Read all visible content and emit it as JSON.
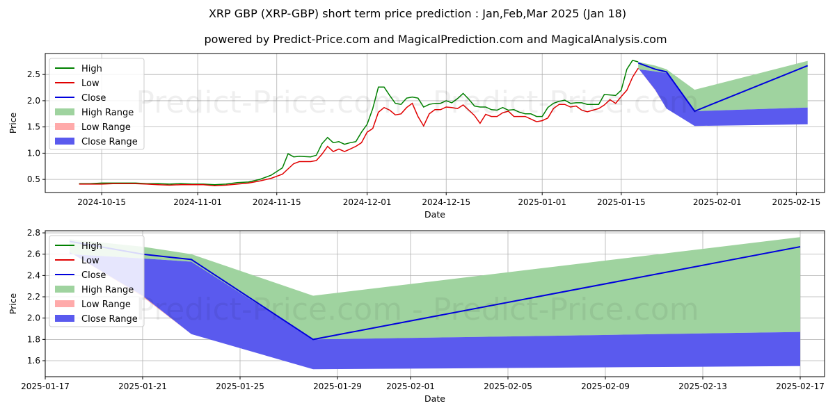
{
  "title": "XRP GBP (XRP-GBP) short term price prediction : Jan,Feb,Mar 2025 (Jan 18)",
  "subtitle": "powered by Predict-Price.com and MagicalPrediction.com and MagicalAnalysis.com",
  "watermark": "Predict-Price.com - Predict-Price.com",
  "colors": {
    "high": "#008000",
    "low": "#e00000",
    "close": "#0000dd",
    "high_range": "#9fd39f",
    "low_range": "#ffaaaa",
    "close_range": "#5a5aee"
  },
  "chart_data": [
    {
      "type": "line",
      "xlabel": "Date",
      "ylabel": "Price",
      "xlim": [
        "2024-10-05",
        "2025-02-20"
      ],
      "ylim": [
        0.25,
        2.9
      ],
      "xticks": [
        "2024-10-15",
        "2024-11-01",
        "2024-11-15",
        "2024-12-01",
        "2024-12-15",
        "2025-01-01",
        "2025-01-15",
        "2025-02-01",
        "2025-02-15"
      ],
      "yticks": [
        0.5,
        1.0,
        1.5,
        2.0,
        2.5
      ],
      "ytick_labels": [
        "0.5",
        "1.0",
        "1.5",
        "2.0",
        "2.5"
      ],
      "legend": [
        "High",
        "Low",
        "Close",
        "High Range",
        "Low Range",
        "Close Range"
      ],
      "legend_position": "upper-left",
      "grid": true,
      "history": [
        [
          "2024-10-11",
          0.42,
          0.41
        ],
        [
          "2024-10-13",
          0.42,
          0.41
        ],
        [
          "2024-10-15",
          0.43,
          0.41
        ],
        [
          "2024-10-17",
          0.43,
          0.42
        ],
        [
          "2024-10-19",
          0.43,
          0.42
        ],
        [
          "2024-10-21",
          0.43,
          0.42
        ],
        [
          "2024-10-23",
          0.42,
          0.41
        ],
        [
          "2024-10-25",
          0.42,
          0.4
        ],
        [
          "2024-10-27",
          0.41,
          0.39
        ],
        [
          "2024-10-29",
          0.42,
          0.4
        ],
        [
          "2024-10-31",
          0.41,
          0.4
        ],
        [
          "2024-11-02",
          0.41,
          0.4
        ],
        [
          "2024-11-04",
          0.4,
          0.38
        ],
        [
          "2024-11-06",
          0.41,
          0.39
        ],
        [
          "2024-11-08",
          0.44,
          0.41
        ],
        [
          "2024-11-10",
          0.45,
          0.43
        ],
        [
          "2024-11-12",
          0.5,
          0.47
        ],
        [
          "2024-11-14",
          0.58,
          0.52
        ],
        [
          "2024-11-16",
          0.72,
          0.6
        ],
        [
          "2024-11-17",
          0.99,
          0.7
        ],
        [
          "2024-11-18",
          0.93,
          0.8
        ],
        [
          "2024-11-19",
          0.94,
          0.84
        ],
        [
          "2024-11-21",
          0.93,
          0.84
        ],
        [
          "2024-11-22",
          0.96,
          0.86
        ],
        [
          "2024-11-23",
          1.18,
          0.98
        ],
        [
          "2024-11-24",
          1.3,
          1.13
        ],
        [
          "2024-11-25",
          1.2,
          1.03
        ],
        [
          "2024-11-26",
          1.22,
          1.08
        ],
        [
          "2024-11-27",
          1.17,
          1.03
        ],
        [
          "2024-11-28",
          1.2,
          1.08
        ],
        [
          "2024-11-29",
          1.22,
          1.13
        ],
        [
          "2024-11-30",
          1.4,
          1.2
        ],
        [
          "2024-12-01",
          1.55,
          1.4
        ],
        [
          "2024-12-02",
          1.85,
          1.47
        ],
        [
          "2024-12-03",
          2.26,
          1.78
        ],
        [
          "2024-12-04",
          2.26,
          1.87
        ],
        [
          "2024-12-05",
          2.1,
          1.82
        ],
        [
          "2024-12-06",
          1.95,
          1.73
        ],
        [
          "2024-12-07",
          1.93,
          1.75
        ],
        [
          "2024-12-08",
          2.05,
          1.87
        ],
        [
          "2024-12-09",
          2.07,
          1.95
        ],
        [
          "2024-12-10",
          2.05,
          1.7
        ],
        [
          "2024-12-11",
          1.88,
          1.52
        ],
        [
          "2024-12-12",
          1.93,
          1.75
        ],
        [
          "2024-12-13",
          1.95,
          1.83
        ],
        [
          "2024-12-14",
          1.95,
          1.83
        ],
        [
          "2024-12-15",
          2.0,
          1.88
        ],
        [
          "2024-12-16",
          1.96,
          1.87
        ],
        [
          "2024-12-17",
          2.04,
          1.85
        ],
        [
          "2024-12-18",
          2.14,
          1.92
        ],
        [
          "2024-12-19",
          2.03,
          1.82
        ],
        [
          "2024-12-20",
          1.9,
          1.72
        ],
        [
          "2024-12-21",
          1.88,
          1.57
        ],
        [
          "2024-12-22",
          1.88,
          1.74
        ],
        [
          "2024-12-23",
          1.83,
          1.7
        ],
        [
          "2024-12-24",
          1.82,
          1.7
        ],
        [
          "2024-12-25",
          1.87,
          1.77
        ],
        [
          "2024-12-26",
          1.82,
          1.8
        ],
        [
          "2024-12-27",
          1.83,
          1.7
        ],
        [
          "2024-12-28",
          1.78,
          1.7
        ],
        [
          "2024-12-29",
          1.75,
          1.7
        ],
        [
          "2024-12-30",
          1.75,
          1.65
        ],
        [
          "2024-12-31",
          1.7,
          1.6
        ],
        [
          "2025-01-01",
          1.7,
          1.62
        ],
        [
          "2025-01-02",
          1.87,
          1.67
        ],
        [
          "2025-01-03",
          1.95,
          1.85
        ],
        [
          "2025-01-04",
          1.99,
          1.93
        ],
        [
          "2025-01-05",
          2.01,
          1.93
        ],
        [
          "2025-01-06",
          1.95,
          1.88
        ],
        [
          "2025-01-07",
          1.96,
          1.9
        ],
        [
          "2025-01-08",
          1.96,
          1.82
        ],
        [
          "2025-01-09",
          1.93,
          1.79
        ],
        [
          "2025-01-10",
          1.93,
          1.82
        ],
        [
          "2025-01-11",
          1.93,
          1.85
        ],
        [
          "2025-01-12",
          2.12,
          1.92
        ],
        [
          "2025-01-13",
          2.11,
          2.02
        ],
        [
          "2025-01-14",
          2.1,
          1.95
        ],
        [
          "2025-01-15",
          2.2,
          2.08
        ],
        [
          "2025-01-16",
          2.6,
          2.2
        ],
        [
          "2025-01-17",
          2.77,
          2.45
        ],
        [
          "2025-01-18",
          2.74,
          2.62
        ]
      ],
      "forecast": [
        [
          "2025-01-18",
          2.74,
          2.62,
          2.72,
          2.6,
          2.62,
          2.6,
          2.74
        ],
        [
          "2025-01-21",
          2.67,
          2.2,
          2.6,
          2.56,
          2.21,
          2.56,
          2.65
        ],
        [
          "2025-01-23",
          2.6,
          1.85,
          2.55,
          2.53,
          1.85,
          2.53,
          2.59
        ],
        [
          "2025-01-28",
          2.21,
          1.52,
          1.8,
          1.95,
          1.52,
          1.8,
          1.95
        ],
        [
          "2025-02-17",
          2.76,
          1.55,
          2.67,
          1.87,
          1.55,
          1.87,
          2.67
        ]
      ]
    },
    {
      "type": "line",
      "xlabel": "Date",
      "ylabel": "Price",
      "xlim": [
        "2025-01-17",
        "2025-02-18"
      ],
      "ylim": [
        1.45,
        2.82
      ],
      "xticks": [
        "2025-01-17",
        "2025-01-21",
        "2025-01-25",
        "2025-01-29",
        "2025-02-01",
        "2025-02-05",
        "2025-02-09",
        "2025-02-13",
        "2025-02-17"
      ],
      "yticks": [
        1.6,
        1.8,
        2.0,
        2.2,
        2.4,
        2.6,
        2.8
      ],
      "ytick_labels": [
        "1.6",
        "1.8",
        "2.0",
        "2.2",
        "2.4",
        "2.6",
        "2.8"
      ],
      "legend": [
        "High",
        "Low",
        "Close",
        "High Range",
        "Low Range",
        "Close Range"
      ],
      "legend_position": "upper-left",
      "grid": true
    }
  ]
}
